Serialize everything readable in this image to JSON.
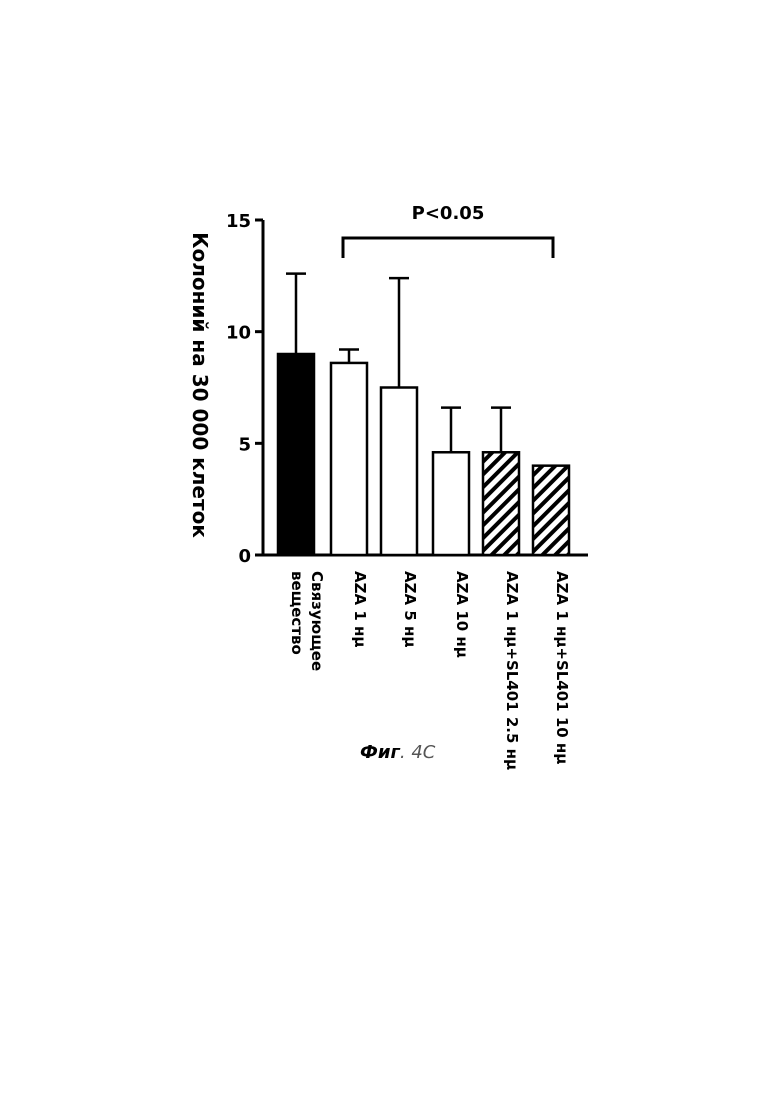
{
  "chart_data": {
    "type": "bar",
    "ylabel": "Колоний на 30 000 клеток",
    "xlabel": "",
    "ylim": [
      0,
      15
    ],
    "yticks": [
      "0",
      "5",
      "10",
      "15"
    ],
    "grid": false,
    "categories": [
      [
        "Связующее",
        "вещество"
      ],
      [
        "AZA 1 нμ"
      ],
      [
        "AZA 5 нμ"
      ],
      [
        "AZA  10 нμ"
      ],
      [
        "AZA 1 нμ+SL401 2.5 нμ"
      ],
      [
        "AZA 1 нμ+SL401 10 нμ"
      ]
    ],
    "values": [
      9.0,
      8.6,
      7.5,
      4.6,
      4.6,
      4.0
    ],
    "errors": [
      3.6,
      0.6,
      4.9,
      2.0,
      2.0,
      0.0
    ],
    "fills": [
      "solid",
      "open",
      "open",
      "open",
      "hatched",
      "hatched"
    ],
    "significance": {
      "label": "P<0.05",
      "from_index": 1,
      "to_index": 5
    }
  },
  "caption": {
    "fig": "Фиг",
    "num": ". 4C"
  },
  "colors": {
    "ink": "#000000",
    "background": "#ffffff"
  }
}
